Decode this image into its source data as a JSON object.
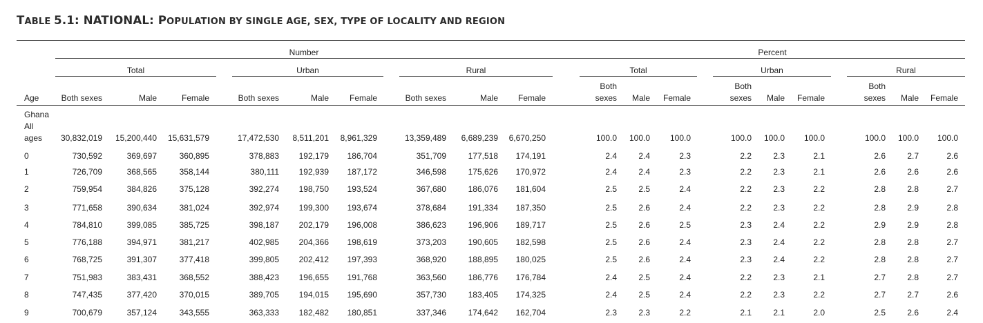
{
  "title": {
    "prefix_big_T": "T",
    "prefix_small": "ABLE ",
    "number": "5.1: NATIONAL: ",
    "p_big": "P",
    "rest_small": "OPULATION BY SINGLE AGE, SEX, TYPE OF LOCALITY AND REGION"
  },
  "header": {
    "number": "Number",
    "percent": "Percent",
    "groups": [
      "Total",
      "Urban",
      "Rural",
      "Total",
      "Urban",
      "Rural"
    ],
    "age": "Age",
    "both_sexes": "Both sexes",
    "both": "Both",
    "sexes": "sexes",
    "male": "Male",
    "female": "Female"
  },
  "first_row_label": [
    "Ghana",
    "All",
    "ages"
  ],
  "rows": [
    {
      "age": "",
      "v": [
        "30,832,019",
        "15,200,440",
        "15,631,579",
        "17,472,530",
        "8,511,201",
        "8,961,329",
        "13,359,489",
        "6,689,239",
        "6,670,250",
        "100.0",
        "100.0",
        "100.0",
        "100.0",
        "100.0",
        "100.0",
        "100.0",
        "100.0",
        "100.0"
      ]
    },
    {
      "age": "0",
      "v": [
        "730,592",
        "369,697",
        "360,895",
        "378,883",
        "192,179",
        "186,704",
        "351,709",
        "177,518",
        "174,191",
        "2.4",
        "2.4",
        "2.3",
        "2.2",
        "2.3",
        "2.1",
        "2.6",
        "2.7",
        "2.6"
      ]
    },
    {
      "age": "1",
      "v": [
        "726,709",
        "368,565",
        "358,144",
        "380,111",
        "192,939",
        "187,172",
        "346,598",
        "175,626",
        "170,972",
        "2.4",
        "2.4",
        "2.3",
        "2.2",
        "2.3",
        "2.1",
        "2.6",
        "2.6",
        "2.6"
      ]
    },
    {
      "age": "2",
      "v": [
        "759,954",
        "384,826",
        "375,128",
        "392,274",
        "198,750",
        "193,524",
        "367,680",
        "186,076",
        "181,604",
        "2.5",
        "2.5",
        "2.4",
        "2.2",
        "2.3",
        "2.2",
        "2.8",
        "2.8",
        "2.7"
      ]
    },
    {
      "age": "3",
      "v": [
        "771,658",
        "390,634",
        "381,024",
        "392,974",
        "199,300",
        "193,674",
        "378,684",
        "191,334",
        "187,350",
        "2.5",
        "2.6",
        "2.4",
        "2.2",
        "2.3",
        "2.2",
        "2.8",
        "2.9",
        "2.8"
      ]
    },
    {
      "age": "4",
      "v": [
        "784,810",
        "399,085",
        "385,725",
        "398,187",
        "202,179",
        "196,008",
        "386,623",
        "196,906",
        "189,717",
        "2.5",
        "2.6",
        "2.5",
        "2.3",
        "2.4",
        "2.2",
        "2.9",
        "2.9",
        "2.8"
      ]
    },
    {
      "age": "5",
      "v": [
        "776,188",
        "394,971",
        "381,217",
        "402,985",
        "204,366",
        "198,619",
        "373,203",
        "190,605",
        "182,598",
        "2.5",
        "2.6",
        "2.4",
        "2.3",
        "2.4",
        "2.2",
        "2.8",
        "2.8",
        "2.7"
      ]
    },
    {
      "age": "6",
      "v": [
        "768,725",
        "391,307",
        "377,418",
        "399,805",
        "202,412",
        "197,393",
        "368,920",
        "188,895",
        "180,025",
        "2.5",
        "2.6",
        "2.4",
        "2.3",
        "2.4",
        "2.2",
        "2.8",
        "2.8",
        "2.7"
      ]
    },
    {
      "age": "7",
      "v": [
        "751,983",
        "383,431",
        "368,552",
        "388,423",
        "196,655",
        "191,768",
        "363,560",
        "186,776",
        "176,784",
        "2.4",
        "2.5",
        "2.4",
        "2.2",
        "2.3",
        "2.1",
        "2.7",
        "2.8",
        "2.7"
      ]
    },
    {
      "age": "8",
      "v": [
        "747,435",
        "377,420",
        "370,015",
        "389,705",
        "194,015",
        "195,690",
        "357,730",
        "183,405",
        "174,325",
        "2.4",
        "2.5",
        "2.4",
        "2.2",
        "2.3",
        "2.2",
        "2.7",
        "2.7",
        "2.6"
      ]
    },
    {
      "age": "9",
      "v": [
        "700,679",
        "357,124",
        "343,555",
        "363,333",
        "182,482",
        "180,851",
        "337,346",
        "174,642",
        "162,704",
        "2.3",
        "2.3",
        "2.2",
        "2.1",
        "2.1",
        "2.0",
        "2.5",
        "2.6",
        "2.4"
      ]
    }
  ]
}
